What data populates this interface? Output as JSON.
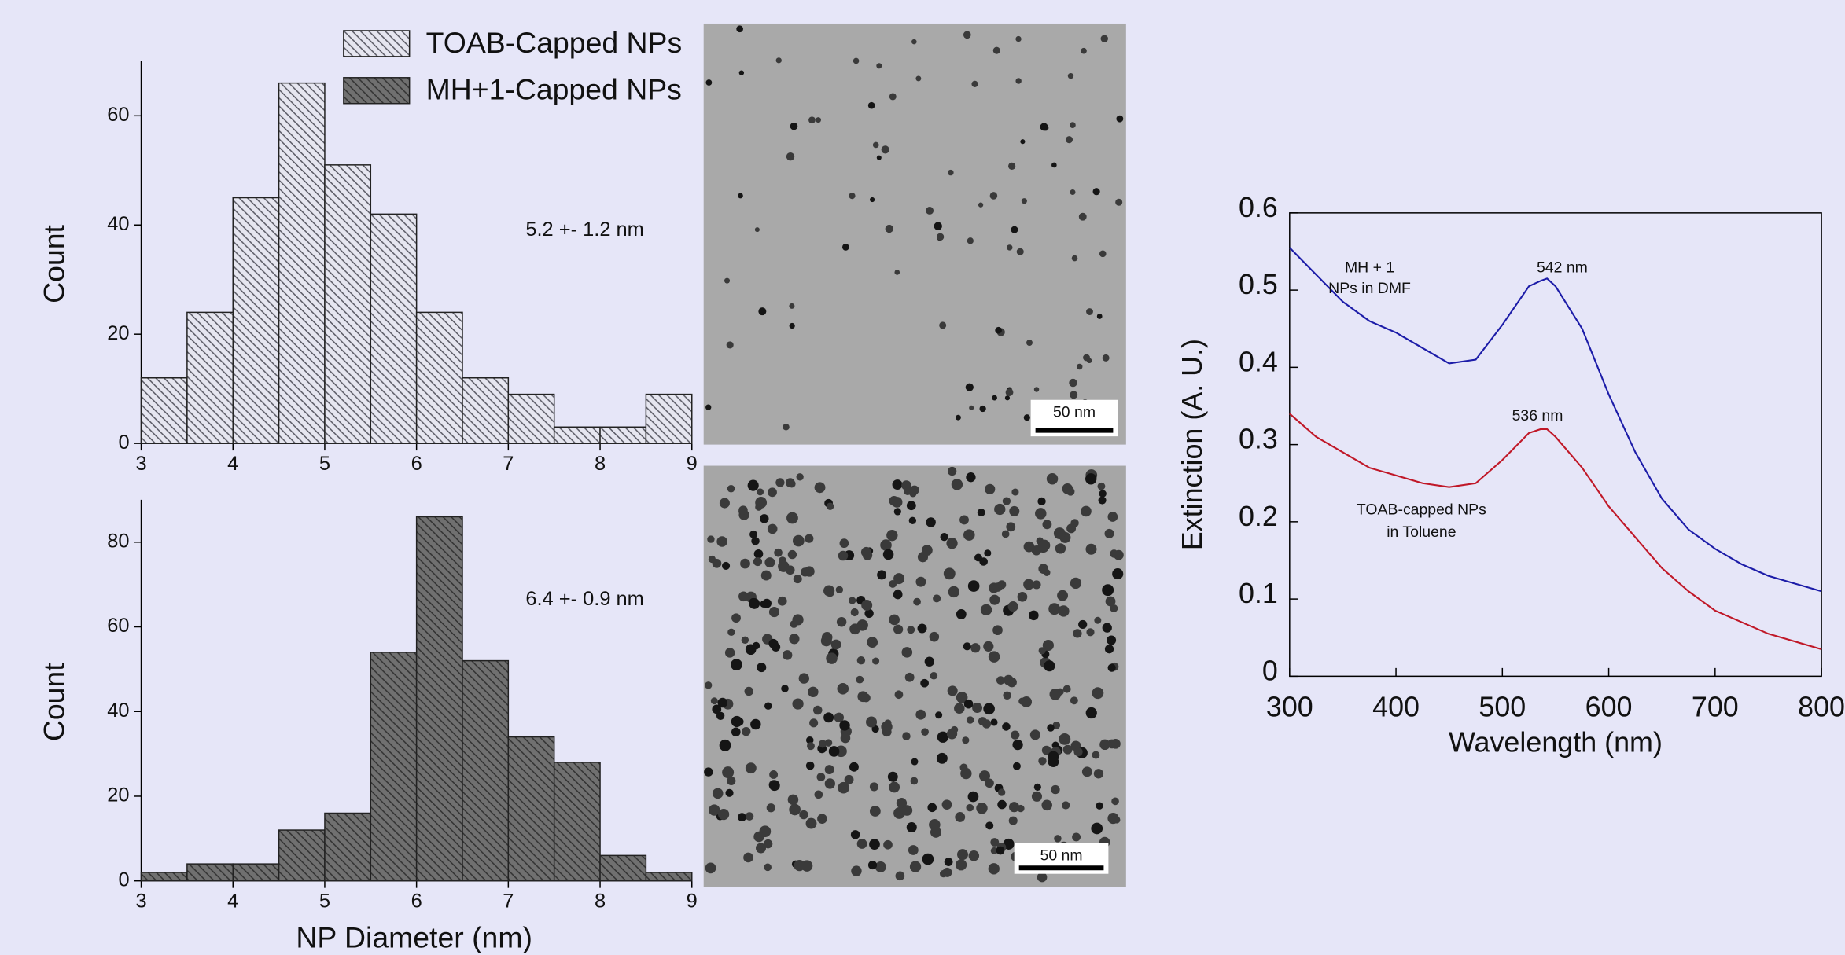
{
  "chart_data": [
    {
      "type": "histogram",
      "ylabel": "Count",
      "annotation": "5.2 +- 1.2 nm",
      "bins": [
        3,
        3.5,
        4,
        4.5,
        5,
        5.5,
        6,
        6.5,
        7,
        7.5,
        8,
        8.5,
        9
      ],
      "series": [
        {
          "name": "TOAB-Capped NPs",
          "color": "#e6e6f0",
          "hatch": "#555560",
          "values": [
            12,
            24,
            45,
            66,
            51,
            42,
            24,
            12,
            9,
            3,
            3,
            9
          ]
        }
      ],
      "xlim": [
        3,
        9
      ],
      "xticks": [
        3,
        4,
        5,
        6,
        7,
        8,
        9
      ],
      "ylim": [
        0,
        70
      ],
      "yticks": [
        0,
        20,
        40,
        60
      ]
    },
    {
      "type": "histogram",
      "xlabel": "NP Diameter (nm)",
      "ylabel": "Count",
      "annotation": "6.4 +- 0.9 nm",
      "bins": [
        3,
        3.5,
        4,
        4.5,
        5,
        5.5,
        6,
        6.5,
        7,
        7.5,
        8,
        8.5,
        9
      ],
      "series": [
        {
          "name": "MH+1-Capped NPs",
          "color": "#707070",
          "hatch": "#303030",
          "values": [
            2,
            4,
            4,
            12,
            16,
            54,
            86,
            52,
            34,
            28,
            6,
            2
          ]
        }
      ],
      "xlim": [
        3,
        9
      ],
      "xticks": [
        3,
        4,
        5,
        6,
        7,
        8,
        9
      ],
      "ylim": [
        0,
        90
      ],
      "yticks": [
        0,
        20,
        40,
        60,
        80
      ]
    },
    {
      "type": "line",
      "xlabel": "Wavelength (nm)",
      "ylabel": "Extinction (A. U.)",
      "annotations": [
        "542 nm",
        "MH + 1",
        "NPs in DMF",
        "536 nm",
        "TOAB-capped NPs",
        "in Toluene"
      ],
      "x": [
        300,
        325,
        350,
        375,
        400,
        425,
        450,
        475,
        500,
        525,
        536,
        542,
        550,
        575,
        600,
        625,
        650,
        675,
        700,
        725,
        750,
        775,
        800
      ],
      "series": [
        {
          "color": "#1c1ca8",
          "values": [
            0.555,
            0.52,
            0.485,
            0.46,
            0.445,
            0.425,
            0.405,
            0.41,
            0.455,
            0.505,
            0.512,
            0.515,
            0.505,
            0.45,
            0.365,
            0.29,
            0.23,
            0.19,
            0.165,
            0.145,
            0.13,
            0.12,
            0.11
          ]
        },
        {
          "color": "#c01828",
          "values": [
            0.34,
            0.31,
            0.29,
            0.27,
            0.26,
            0.25,
            0.245,
            0.25,
            0.28,
            0.315,
            0.32,
            0.32,
            0.31,
            0.27,
            0.22,
            0.18,
            0.14,
            0.11,
            0.085,
            0.07,
            0.055,
            0.045,
            0.035
          ]
        }
      ],
      "xlim": [
        300,
        800
      ],
      "xticks": [
        300,
        400,
        500,
        600,
        700,
        800
      ],
      "ylim": [
        0,
        0.6
      ],
      "yticks": [
        0,
        0.1,
        0.2,
        0.3,
        0.4,
        0.5,
        0.6
      ]
    }
  ],
  "images": [
    {
      "scale_bar": "50 nm"
    },
    {
      "scale_bar": "50 nm"
    }
  ]
}
